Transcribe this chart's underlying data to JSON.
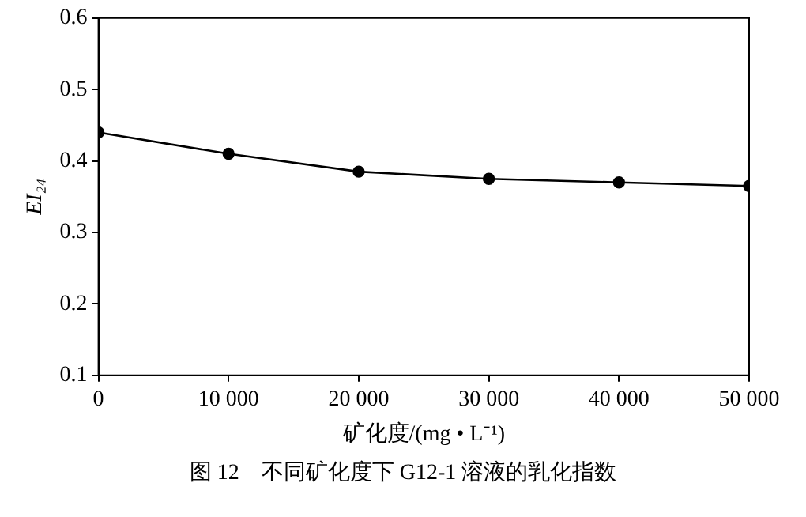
{
  "chart_data": {
    "type": "line",
    "xlabel": "矿化度/(mg • L⁻¹)",
    "ylabel": "EI₂₄",
    "x": [
      0,
      10000,
      20000,
      30000,
      40000,
      50000
    ],
    "series": [
      {
        "color": "#000000",
        "values": [
          0.44,
          0.41,
          0.385,
          0.375,
          0.37,
          0.365
        ]
      }
    ],
    "xlim": [
      0,
      50000
    ],
    "xticks": [
      0,
      {
        "value": 10000,
        "label": "10 000"
      },
      {
        "value": 20000,
        "label": "20 000"
      },
      {
        "value": 30000,
        "label": "30 000"
      },
      {
        "value": 40000,
        "label": "40 000"
      },
      {
        "value": 50000,
        "label": "50 000"
      }
    ],
    "ylim": [
      0.1,
      0.6
    ],
    "yticks": [
      0.1,
      0.2,
      0.3,
      0.4,
      0.5,
      0.6
    ],
    "grid": false,
    "legend": false,
    "marker": "circle",
    "line_style": "solid",
    "annotations": [
      "图 12　不同矿化度下 G12-1 溶液的乳化指数"
    ]
  }
}
